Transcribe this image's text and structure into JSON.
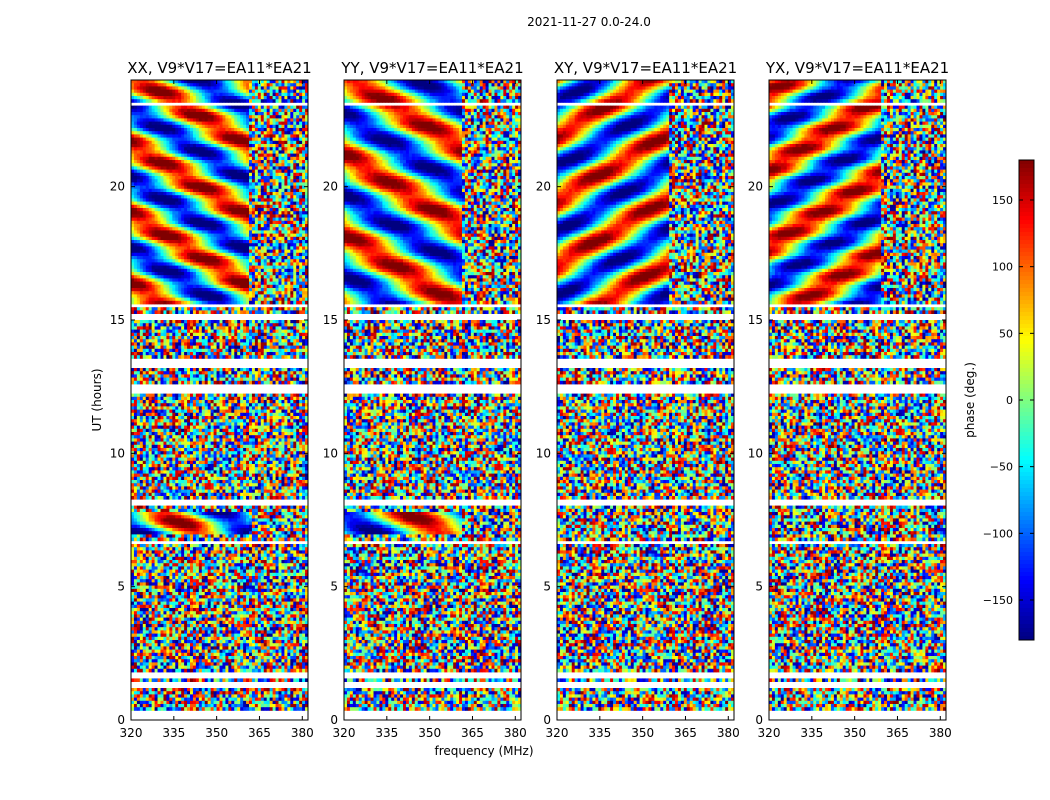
{
  "figure": {
    "suptitle": "2021-11-27 0.0-24.0",
    "xlabel": "frequency (MHz)",
    "ylabel": "UT (hours)",
    "colorbar_label": "phase (deg.)"
  },
  "chart_data": {
    "type": "heatmap",
    "x_range": [
      320,
      382
    ],
    "x_ticks": [
      320,
      335,
      350,
      365,
      380
    ],
    "y_range": [
      0,
      24
    ],
    "y_ticks": [
      0,
      5,
      10,
      15,
      20
    ],
    "color_range": [
      -180,
      180
    ],
    "colorbar_ticks": [
      -150,
      -100,
      -50,
      0,
      50,
      100,
      150
    ],
    "colormap": "jet",
    "panels": [
      {
        "title": "XX, V9*V17=EA11*EA21",
        "smooth_ut": [
          [
            6.9,
            7.8
          ],
          [
            15.6,
            24.0
          ]
        ],
        "rfi_above_mhz": 361
      },
      {
        "title": "YY, V9*V17=EA11*EA21",
        "smooth_ut": [
          [
            6.9,
            7.8
          ],
          [
            15.6,
            24.0
          ]
        ],
        "rfi_above_mhz": 361
      },
      {
        "title": "XY, V9*V17=EA11*EA21",
        "smooth_ut": [
          [
            15.6,
            24.0
          ]
        ],
        "rfi_above_mhz": 359
      },
      {
        "title": "YX, V9*V17=EA11*EA21",
        "smooth_ut": [
          [
            15.6,
            24.0
          ]
        ],
        "rfi_above_mhz": 359
      }
    ],
    "data_gaps_ut": [
      [
        1.2,
        1.5
      ],
      [
        1.6,
        1.75
      ],
      [
        6.6,
        6.75
      ],
      [
        8.1,
        8.25
      ],
      [
        12.3,
        12.55
      ],
      [
        13.2,
        13.55
      ],
      [
        15.05,
        15.3
      ],
      [
        15.48,
        15.6
      ],
      [
        23.05,
        23.15
      ]
    ]
  }
}
